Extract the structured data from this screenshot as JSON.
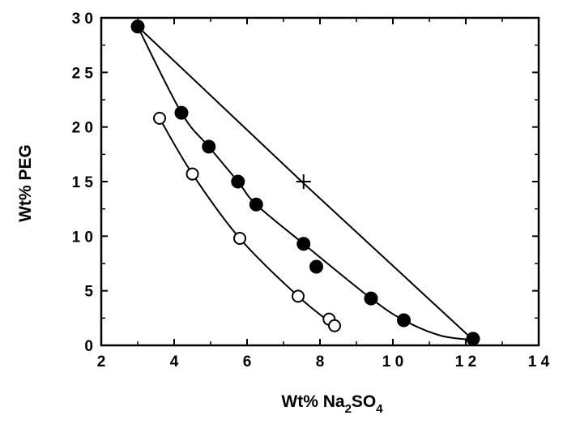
{
  "chart_data": {
    "type": "scatter",
    "xlabel": {
      "main": "Wt% Na",
      "sub1": "2",
      "mid": "SO",
      "sub2": "4"
    },
    "ylabel": "Wt% PEG",
    "xlim": [
      2,
      14
    ],
    "ylim": [
      0,
      30
    ],
    "x_ticks": [
      2,
      4,
      6,
      8,
      10,
      12,
      14
    ],
    "x_tick_labels": [
      "2",
      "4",
      "6",
      "8",
      "1 0",
      "1 2",
      "1 4"
    ],
    "y_ticks": [
      0,
      5,
      10,
      15,
      20,
      25,
      30
    ],
    "y_tick_labels": [
      "0",
      "5",
      "1 0",
      "1 5",
      "2 0",
      "2 5",
      "3 0"
    ],
    "grid": false,
    "series": [
      {
        "marker": "filled-circle",
        "points": [
          [
            3.0,
            29.2
          ],
          [
            4.2,
            21.3
          ],
          [
            4.95,
            18.2
          ],
          [
            5.75,
            15.0
          ],
          [
            6.25,
            12.9
          ],
          [
            7.55,
            9.3
          ],
          [
            7.9,
            7.2
          ],
          [
            9.4,
            4.3
          ],
          [
            10.3,
            2.3
          ],
          [
            12.2,
            0.6
          ]
        ],
        "curve": [
          [
            3.0,
            29.2
          ],
          [
            4.2,
            21.3
          ],
          [
            4.95,
            18.2
          ],
          [
            5.75,
            15.0
          ],
          [
            6.25,
            12.9
          ],
          [
            7.55,
            9.3
          ],
          [
            9.4,
            4.3
          ],
          [
            10.3,
            2.3
          ],
          [
            11.3,
            0.9
          ],
          [
            12.2,
            0.5
          ]
        ]
      },
      {
        "marker": "open-circle",
        "points": [
          [
            3.6,
            20.8
          ],
          [
            4.5,
            15.7
          ],
          [
            5.8,
            9.8
          ],
          [
            7.4,
            4.5
          ],
          [
            8.25,
            2.4
          ],
          [
            8.4,
            1.8
          ]
        ],
        "curve": [
          [
            3.6,
            20.8
          ],
          [
            4.5,
            15.7
          ],
          [
            5.8,
            9.8
          ],
          [
            7.4,
            4.5
          ],
          [
            8.4,
            1.8
          ]
        ]
      }
    ],
    "tie_line": {
      "points": [
        [
          3.0,
          29.2
        ],
        [
          7.5,
          15.0
        ],
        [
          12.2,
          0.5
        ]
      ]
    },
    "mixture_point": {
      "marker": "plus",
      "x": 7.55,
      "y": 15.0
    }
  }
}
